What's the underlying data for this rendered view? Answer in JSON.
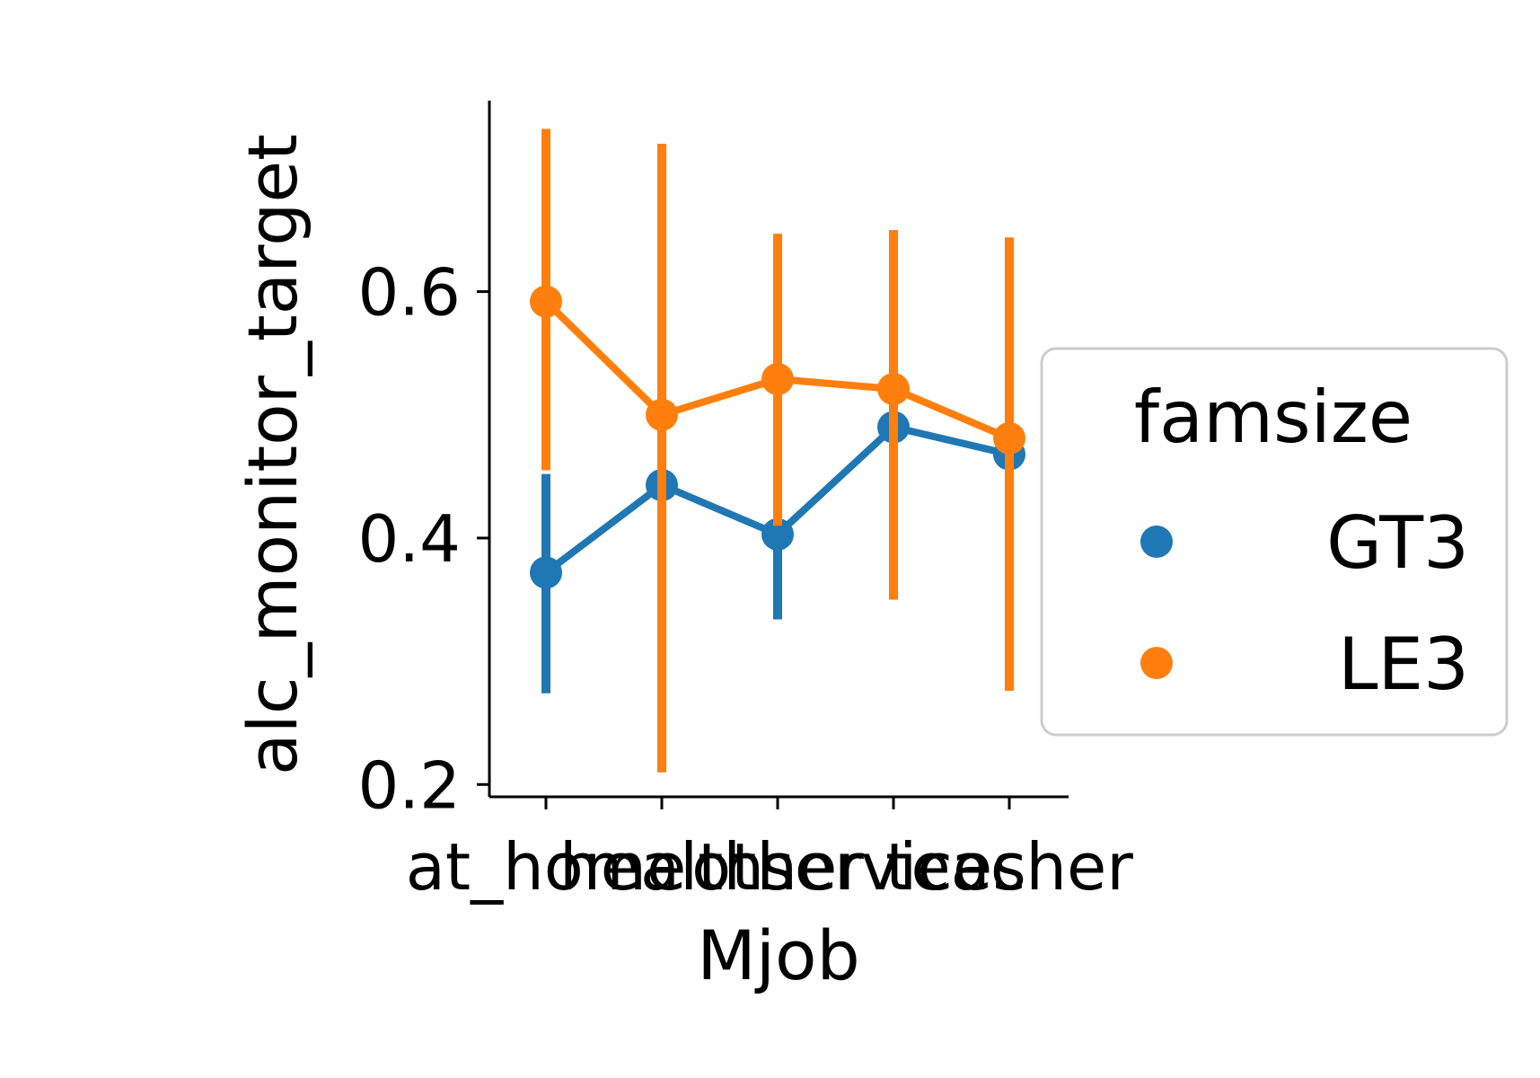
{
  "chart_data": {
    "type": "line",
    "xlabel": "Mjob",
    "ylabel": "alc_monitor_target",
    "categories": [
      "at_home",
      "health",
      "other",
      "services",
      "teacher"
    ],
    "ylim": [
      0.19,
      0.755
    ],
    "yticks": [
      0.2,
      0.4,
      0.6
    ],
    "ytick_labels": [
      "0.2",
      "0.4",
      "0.6"
    ],
    "grid": false,
    "legend": {
      "title": "famsize",
      "placement": "center-right outside"
    },
    "series": [
      {
        "name": "GT3",
        "color": "#1f77b4",
        "values": [
          0.372,
          0.443,
          0.403,
          0.49,
          0.468
        ],
        "ci_low": [
          0.274,
          0.21,
          0.334,
          0.35,
          0.33
        ],
        "ci_high": [
          0.452,
          0.72,
          0.46,
          0.65,
          0.62
        ]
      },
      {
        "name": "LE3",
        "color": "#ff7f0e",
        "values": [
          0.592,
          0.5,
          0.529,
          0.521,
          0.481
        ],
        "ci_low": [
          0.455,
          0.21,
          0.41,
          0.35,
          0.276
        ],
        "ci_high": [
          0.732,
          0.72,
          0.647,
          0.65,
          0.644
        ]
      }
    ]
  }
}
